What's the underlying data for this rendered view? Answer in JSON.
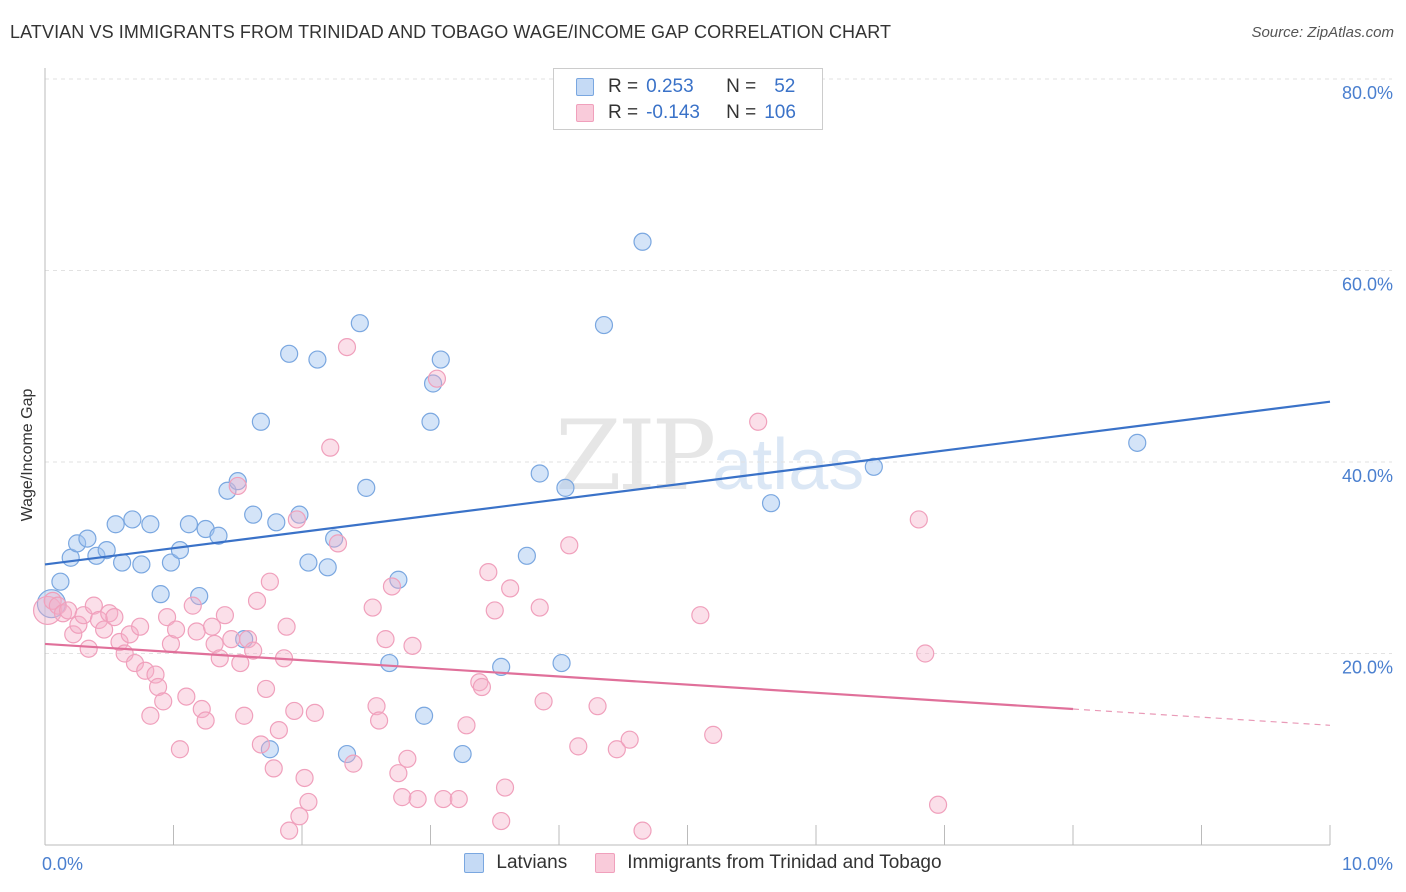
{
  "title": "LATVIAN VS IMMIGRANTS FROM TRINIDAD AND TOBAGO WAGE/INCOME GAP CORRELATION CHART",
  "source": "Source: ZipAtlas.com",
  "watermark": {
    "zip": "ZIP",
    "atlas": "atlas"
  },
  "legend": {
    "rows": [
      {
        "r_label": "R =",
        "r_value": "0.253",
        "n_label": "N =",
        "n_value": "52",
        "color": "#7aa7e0"
      },
      {
        "r_label": "R =",
        "r_value": "-0.143",
        "n_label": "N =",
        "n_value": "106",
        "color": "#f0a0bc"
      }
    ]
  },
  "chart_data": {
    "type": "scatter",
    "title": "LATVIAN VS IMMIGRANTS FROM TRINIDAD AND TOBAGO WAGE/INCOME GAP CORRELATION CHART",
    "xlabel": "",
    "ylabel": "Wage/Income Gap",
    "xlim": [
      0,
      10
    ],
    "ylim": [
      0,
      80
    ],
    "x_ticks": [
      0,
      10
    ],
    "x_tick_labels": [
      "0.0%",
      "10.0%"
    ],
    "y_ticks": [
      20,
      40,
      60,
      80
    ],
    "y_tick_labels": [
      "20.0%",
      "40.0%",
      "60.0%",
      "80.0%"
    ],
    "grid": true,
    "legend_position": "top-center",
    "series": [
      {
        "name": "Latvians",
        "color": "#7aa7e0",
        "line_color": "#3a72c8",
        "trend": {
          "x0": 0,
          "y0": 29.3,
          "x1": 10,
          "y1": 46.3
        },
        "points": [
          [
            0.05,
            25.2,
            2
          ],
          [
            0.12,
            27.5,
            1
          ],
          [
            0.2,
            30.0,
            1
          ],
          [
            0.25,
            31.5,
            1
          ],
          [
            0.33,
            32.0,
            1
          ],
          [
            0.4,
            30.2,
            1
          ],
          [
            0.48,
            30.8,
            1
          ],
          [
            0.55,
            33.5,
            1
          ],
          [
            0.6,
            29.5,
            1
          ],
          [
            0.68,
            34.0,
            1
          ],
          [
            0.75,
            29.3,
            1
          ],
          [
            0.82,
            33.5,
            1
          ],
          [
            0.9,
            26.2,
            1
          ],
          [
            0.98,
            29.5,
            1
          ],
          [
            1.05,
            30.8,
            1
          ],
          [
            1.12,
            33.5,
            1
          ],
          [
            1.2,
            26.0,
            1
          ],
          [
            1.25,
            33.0,
            1
          ],
          [
            1.35,
            32.3,
            1
          ],
          [
            1.42,
            37.0,
            1
          ],
          [
            1.5,
            38.0,
            1
          ],
          [
            1.55,
            21.5,
            1
          ],
          [
            1.62,
            34.5,
            1
          ],
          [
            1.68,
            44.2,
            1
          ],
          [
            1.75,
            10.0,
            1
          ],
          [
            1.8,
            33.7,
            1
          ],
          [
            1.9,
            51.3,
            1
          ],
          [
            1.98,
            34.5,
            1
          ],
          [
            2.05,
            29.5,
            1
          ],
          [
            2.12,
            50.7,
            1
          ],
          [
            2.2,
            29.0,
            1
          ],
          [
            2.25,
            32.0,
            1
          ],
          [
            2.35,
            9.5,
            1
          ],
          [
            2.45,
            54.5,
            1
          ],
          [
            2.5,
            37.3,
            1
          ],
          [
            2.68,
            19.0,
            1
          ],
          [
            2.75,
            27.7,
            1
          ],
          [
            2.95,
            13.5,
            1
          ],
          [
            3.0,
            44.2,
            1
          ],
          [
            3.02,
            48.2,
            1
          ],
          [
            3.08,
            50.7,
            1
          ],
          [
            3.25,
            9.5,
            1
          ],
          [
            3.55,
            18.6,
            1
          ],
          [
            3.75,
            30.2,
            1
          ],
          [
            3.85,
            38.8,
            1
          ],
          [
            4.02,
            19.0,
            1
          ],
          [
            4.05,
            37.3,
            1
          ],
          [
            4.35,
            54.3,
            1
          ],
          [
            4.65,
            63.0,
            1
          ],
          [
            5.65,
            35.7,
            1
          ],
          [
            6.45,
            39.5,
            1
          ],
          [
            8.5,
            42.0,
            1
          ]
        ]
      },
      {
        "name": "Immigrants from Trinidad and Tobago",
        "color": "#f0a0bc",
        "line_color": "#e0709a",
        "trend": {
          "x0": 0,
          "y0": 21.0,
          "x1": 8.0,
          "y1": 14.2
        },
        "trend_dashed": {
          "x0": 8.0,
          "y0": 14.2,
          "x1": 10,
          "y1": 12.5
        },
        "points": [
          [
            0.02,
            24.5,
            2
          ],
          [
            0.06,
            25.5,
            1
          ],
          [
            0.1,
            25.0,
            1
          ],
          [
            0.14,
            24.2,
            1
          ],
          [
            0.18,
            24.5,
            1
          ],
          [
            0.22,
            22.0,
            1
          ],
          [
            0.26,
            23.0,
            1
          ],
          [
            0.3,
            24.0,
            1
          ],
          [
            0.34,
            20.5,
            1
          ],
          [
            0.38,
            25.0,
            1
          ],
          [
            0.42,
            23.5,
            1
          ],
          [
            0.46,
            22.5,
            1
          ],
          [
            0.5,
            24.2,
            1
          ],
          [
            0.54,
            23.8,
            1
          ],
          [
            0.58,
            21.2,
            1
          ],
          [
            0.62,
            20.0,
            1
          ],
          [
            0.66,
            22.0,
            1
          ],
          [
            0.7,
            19.0,
            1
          ],
          [
            0.74,
            22.8,
            1
          ],
          [
            0.78,
            18.2,
            1
          ],
          [
            0.82,
            13.5,
            1
          ],
          [
            0.86,
            17.8,
            1
          ],
          [
            0.88,
            16.5,
            1
          ],
          [
            0.92,
            15.0,
            1
          ],
          [
            0.95,
            23.8,
            1
          ],
          [
            0.98,
            21.0,
            1
          ],
          [
            1.02,
            22.5,
            1
          ],
          [
            1.05,
            10.0,
            1
          ],
          [
            1.1,
            15.5,
            1
          ],
          [
            1.15,
            25.0,
            1
          ],
          [
            1.18,
            22.3,
            1
          ],
          [
            1.22,
            14.2,
            1
          ],
          [
            1.25,
            13.0,
            1
          ],
          [
            1.3,
            22.8,
            1
          ],
          [
            1.32,
            21.0,
            1
          ],
          [
            1.36,
            19.5,
            1
          ],
          [
            1.4,
            24.0,
            1
          ],
          [
            1.45,
            21.5,
            1
          ],
          [
            1.5,
            37.5,
            1
          ],
          [
            1.52,
            19.0,
            1
          ],
          [
            1.55,
            13.5,
            1
          ],
          [
            1.58,
            21.5,
            1
          ],
          [
            1.62,
            20.3,
            1
          ],
          [
            1.65,
            25.5,
            1
          ],
          [
            1.68,
            10.5,
            1
          ],
          [
            1.72,
            16.3,
            1
          ],
          [
            1.75,
            27.5,
            1
          ],
          [
            1.78,
            8.0,
            1
          ],
          [
            1.82,
            12.0,
            1
          ],
          [
            1.86,
            19.5,
            1
          ],
          [
            1.88,
            22.8,
            1
          ],
          [
            1.9,
            1.5,
            1
          ],
          [
            1.94,
            14.0,
            1
          ],
          [
            1.96,
            34.0,
            1
          ],
          [
            1.98,
            3.0,
            1
          ],
          [
            2.02,
            7.0,
            1
          ],
          [
            2.05,
            4.5,
            1
          ],
          [
            2.1,
            13.8,
            1
          ],
          [
            2.22,
            41.5,
            1
          ],
          [
            2.28,
            31.5,
            1
          ],
          [
            2.35,
            52.0,
            1
          ],
          [
            2.4,
            8.5,
            1
          ],
          [
            2.55,
            24.8,
            1
          ],
          [
            2.58,
            14.5,
            1
          ],
          [
            2.6,
            13.0,
            1
          ],
          [
            2.65,
            21.5,
            1
          ],
          [
            2.7,
            27.0,
            1
          ],
          [
            2.75,
            7.5,
            1
          ],
          [
            2.78,
            5.0,
            1
          ],
          [
            2.82,
            9.0,
            1
          ],
          [
            2.86,
            20.8,
            1
          ],
          [
            2.9,
            4.8,
            1
          ],
          [
            3.05,
            48.7,
            1
          ],
          [
            3.1,
            4.8,
            1
          ],
          [
            3.22,
            4.8,
            1
          ],
          [
            3.28,
            12.5,
            1
          ],
          [
            3.38,
            17.0,
            1
          ],
          [
            3.4,
            16.5,
            1
          ],
          [
            3.45,
            28.5,
            1
          ],
          [
            3.5,
            24.5,
            1
          ],
          [
            3.55,
            2.5,
            1
          ],
          [
            3.58,
            6.0,
            1
          ],
          [
            3.62,
            26.8,
            1
          ],
          [
            3.85,
            24.8,
            1
          ],
          [
            3.88,
            15.0,
            1
          ],
          [
            4.08,
            31.3,
            1
          ],
          [
            4.15,
            10.3,
            1
          ],
          [
            4.3,
            14.5,
            1
          ],
          [
            4.45,
            10.0,
            1
          ],
          [
            4.55,
            11.0,
            1
          ],
          [
            4.65,
            1.5,
            1
          ],
          [
            5.1,
            24.0,
            1
          ],
          [
            5.2,
            11.5,
            1
          ],
          [
            5.55,
            44.2,
            1
          ],
          [
            6.8,
            34.0,
            1
          ],
          [
            6.85,
            20.0,
            1
          ],
          [
            6.95,
            4.2,
            1
          ]
        ]
      }
    ]
  }
}
